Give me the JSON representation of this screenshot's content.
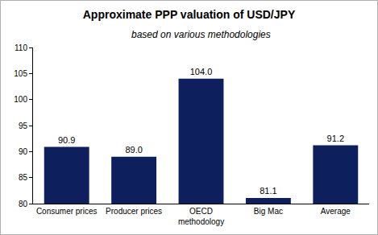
{
  "chart_data": {
    "type": "bar",
    "title": "Approximate PPP valuation of USD/JPY",
    "subtitle": "based on various methodologies",
    "categories": [
      "Consumer prices",
      "Producer prices",
      "OECD methodology",
      "Big Mac",
      "Average"
    ],
    "values": [
      90.9,
      89.0,
      104.0,
      81.1,
      91.2
    ],
    "value_labels": [
      "90.9",
      "89.0",
      "104.0",
      "81.1",
      "91.2"
    ],
    "color": "#0d1f5c",
    "ylim": [
      80,
      110
    ],
    "yticks": [
      80,
      85,
      90,
      95,
      100,
      105,
      110
    ],
    "grid": false,
    "data_labels": true
  }
}
